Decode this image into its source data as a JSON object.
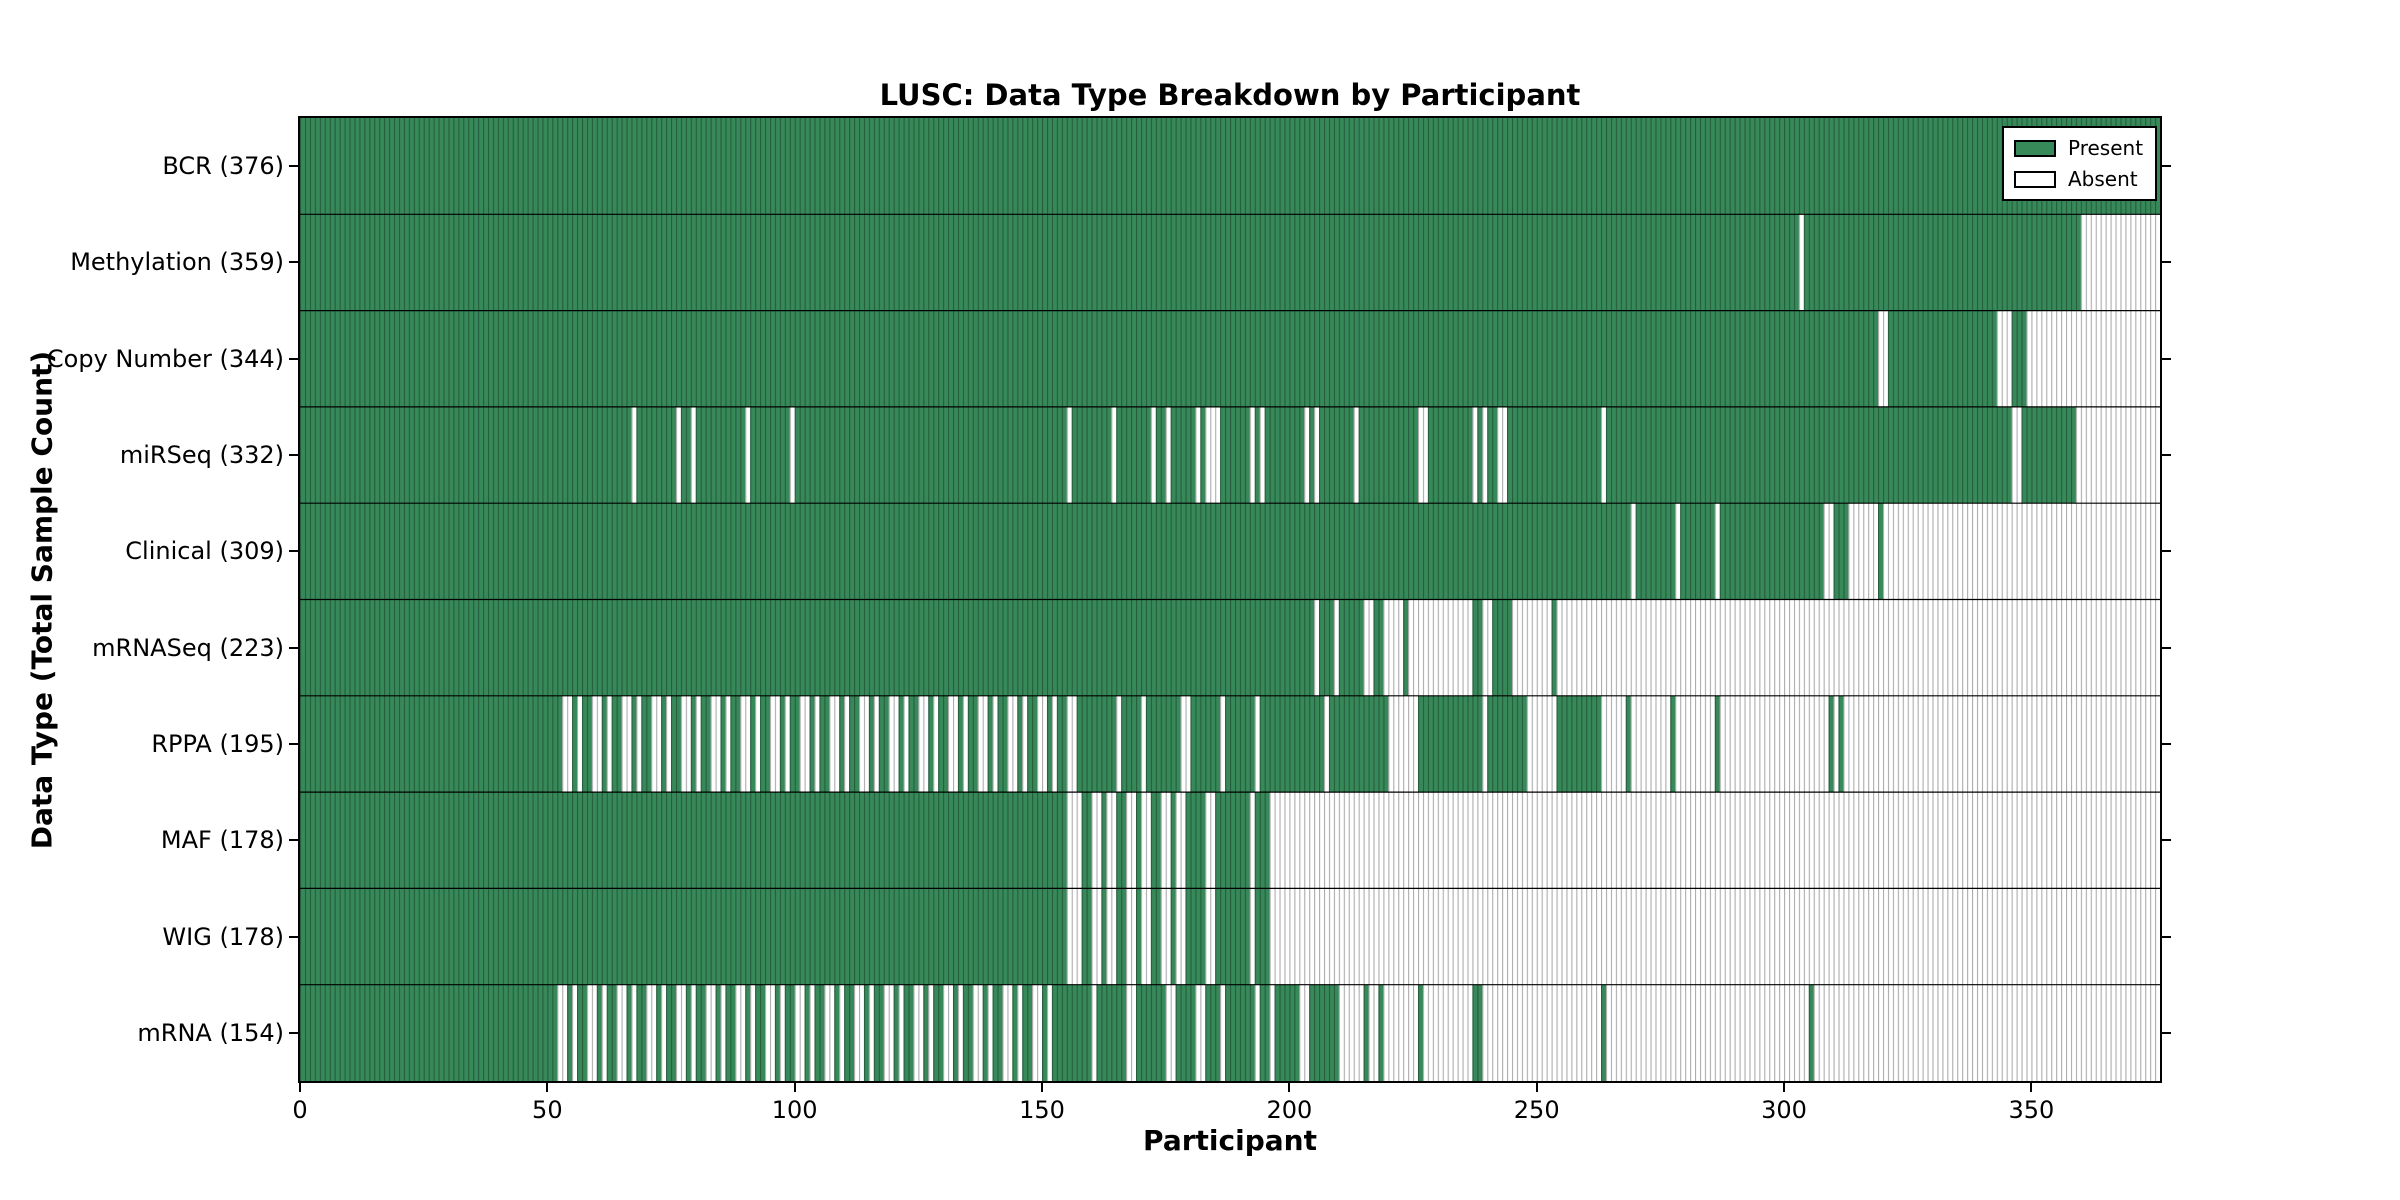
{
  "chart_data": {
    "type": "heatmap",
    "title": "LUSC: Data Type Breakdown by Participant",
    "xlabel": "Participant",
    "ylabel": "Data Type (Total Sample Count)",
    "x_min": 0,
    "x_max": 376,
    "x_ticks": [
      0,
      50,
      100,
      150,
      200,
      250,
      300,
      350
    ],
    "grid": false,
    "legend": {
      "position": "upper right",
      "entries": [
        {
          "label": "Present",
          "color": "#37895A"
        },
        {
          "label": "Absent",
          "color": "#FFFFFF"
        }
      ]
    },
    "colors": {
      "present": "#37895A",
      "absent": "#FFFFFF",
      "cell_edge": "rgba(0,0,0,0.32)",
      "row_separator": "#000000",
      "frame": "#000000"
    },
    "value_encoding": "each row lists absent participant index ranges [start,end); all other of the 376 participants are present",
    "rows": [
      {
        "name": "BCR",
        "total_sample_count": 376,
        "tick_label": "BCR (376)",
        "absent_ranges": []
      },
      {
        "name": "Methylation",
        "total_sample_count": 359,
        "tick_label": "Methylation (359)",
        "absent_ranges": [
          [
            303,
            304
          ],
          [
            360,
            376
          ]
        ]
      },
      {
        "name": "Copy Number",
        "total_sample_count": 344,
        "tick_label": "Copy Number (344)",
        "absent_ranges": [
          [
            319,
            321
          ],
          [
            343,
            346
          ],
          [
            349,
            376
          ]
        ]
      },
      {
        "name": "miRSeq",
        "total_sample_count": 332,
        "tick_label": "miRSeq (332)",
        "absent_ranges": [
          [
            67,
            68
          ],
          [
            76,
            77
          ],
          [
            79,
            80
          ],
          [
            90,
            91
          ],
          [
            99,
            100
          ],
          [
            155,
            156
          ],
          [
            164,
            165
          ],
          [
            172,
            173
          ],
          [
            175,
            176
          ],
          [
            181,
            182
          ],
          [
            183,
            186
          ],
          [
            192,
            193
          ],
          [
            194,
            195
          ],
          [
            203,
            204
          ],
          [
            205,
            206
          ],
          [
            213,
            214
          ],
          [
            226,
            228
          ],
          [
            237,
            238
          ],
          [
            239,
            240
          ],
          [
            242,
            244
          ],
          [
            263,
            264
          ],
          [
            346,
            348
          ],
          [
            359,
            376
          ]
        ]
      },
      {
        "name": "Clinical",
        "total_sample_count": 309,
        "tick_label": "Clinical (309)",
        "absent_ranges": [
          [
            269,
            270
          ],
          [
            278,
            279
          ],
          [
            286,
            287
          ],
          [
            308,
            310
          ],
          [
            313,
            319
          ],
          [
            320,
            376
          ]
        ]
      },
      {
        "name": "mRNASeq",
        "total_sample_count": 223,
        "tick_label": "mRNASeq (223)",
        "absent_ranges": [
          [
            205,
            206
          ],
          [
            209,
            210
          ],
          [
            215,
            217
          ],
          [
            219,
            223
          ],
          [
            224,
            237
          ],
          [
            239,
            241
          ],
          [
            245,
            253
          ],
          [
            254,
            376
          ]
        ]
      },
      {
        "name": "RPPA",
        "total_sample_count": 195,
        "tick_label": "RPPA (195)",
        "absent_ranges": [
          [
            53,
            55
          ],
          [
            56,
            57
          ],
          [
            59,
            61
          ],
          [
            62,
            63
          ],
          [
            65,
            67
          ],
          [
            68,
            69
          ],
          [
            71,
            73
          ],
          [
            74,
            75
          ],
          [
            77,
            79
          ],
          [
            80,
            81
          ],
          [
            83,
            85
          ],
          [
            86,
            87
          ],
          [
            89,
            91
          ],
          [
            92,
            93
          ],
          [
            95,
            97
          ],
          [
            98,
            99
          ],
          [
            101,
            103
          ],
          [
            104,
            105
          ],
          [
            107,
            109
          ],
          [
            110,
            111
          ],
          [
            113,
            115
          ],
          [
            116,
            117
          ],
          [
            119,
            121
          ],
          [
            122,
            123
          ],
          [
            125,
            127
          ],
          [
            128,
            129
          ],
          [
            131,
            133
          ],
          [
            134,
            135
          ],
          [
            137,
            139
          ],
          [
            140,
            141
          ],
          [
            143,
            145
          ],
          [
            146,
            147
          ],
          [
            149,
            151
          ],
          [
            152,
            153
          ],
          [
            155,
            157
          ],
          [
            165,
            166
          ],
          [
            170,
            171
          ],
          [
            178,
            180
          ],
          [
            186,
            187
          ],
          [
            193,
            194
          ],
          [
            207,
            208
          ],
          [
            220,
            226
          ],
          [
            239,
            240
          ],
          [
            248,
            254
          ],
          [
            263,
            268
          ],
          [
            269,
            277
          ],
          [
            278,
            286
          ],
          [
            287,
            309
          ],
          [
            310,
            311
          ],
          [
            312,
            376
          ]
        ]
      },
      {
        "name": "MAF",
        "total_sample_count": 178,
        "tick_label": "MAF (178)",
        "absent_ranges": [
          [
            155,
            158
          ],
          [
            160,
            162
          ],
          [
            163,
            165
          ],
          [
            167,
            169
          ],
          [
            170,
            172
          ],
          [
            174,
            176
          ],
          [
            177,
            179
          ],
          [
            183,
            185
          ],
          [
            192,
            193
          ],
          [
            196,
            376
          ]
        ]
      },
      {
        "name": "WIG",
        "total_sample_count": 178,
        "tick_label": "WIG (178)",
        "absent_ranges": [
          [
            155,
            158
          ],
          [
            160,
            162
          ],
          [
            163,
            165
          ],
          [
            167,
            169
          ],
          [
            170,
            172
          ],
          [
            174,
            176
          ],
          [
            177,
            179
          ],
          [
            183,
            185
          ],
          [
            192,
            193
          ],
          [
            196,
            376
          ]
        ]
      },
      {
        "name": "mRNA",
        "total_sample_count": 154,
        "tick_label": "mRNA (154)",
        "absent_ranges": [
          [
            52,
            54
          ],
          [
            55,
            56
          ],
          [
            58,
            60
          ],
          [
            61,
            62
          ],
          [
            64,
            66
          ],
          [
            67,
            68
          ],
          [
            70,
            72
          ],
          [
            73,
            74
          ],
          [
            76,
            78
          ],
          [
            79,
            80
          ],
          [
            82,
            84
          ],
          [
            85,
            86
          ],
          [
            88,
            90
          ],
          [
            91,
            92
          ],
          [
            94,
            96
          ],
          [
            97,
            98
          ],
          [
            100,
            102
          ],
          [
            103,
            104
          ],
          [
            106,
            108
          ],
          [
            109,
            110
          ],
          [
            112,
            114
          ],
          [
            115,
            116
          ],
          [
            118,
            120
          ],
          [
            121,
            122
          ],
          [
            124,
            126
          ],
          [
            127,
            128
          ],
          [
            130,
            132
          ],
          [
            133,
            134
          ],
          [
            136,
            138
          ],
          [
            139,
            140
          ],
          [
            142,
            144
          ],
          [
            145,
            146
          ],
          [
            148,
            150
          ],
          [
            151,
            152
          ],
          [
            160,
            161
          ],
          [
            167,
            169
          ],
          [
            175,
            177
          ],
          [
            181,
            183
          ],
          [
            186,
            187
          ],
          [
            193,
            194
          ],
          [
            196,
            197
          ],
          [
            202,
            204
          ],
          [
            210,
            215
          ],
          [
            216,
            218
          ],
          [
            219,
            226
          ],
          [
            227,
            237
          ],
          [
            239,
            263
          ],
          [
            264,
            305
          ],
          [
            306,
            376
          ]
        ]
      }
    ]
  }
}
